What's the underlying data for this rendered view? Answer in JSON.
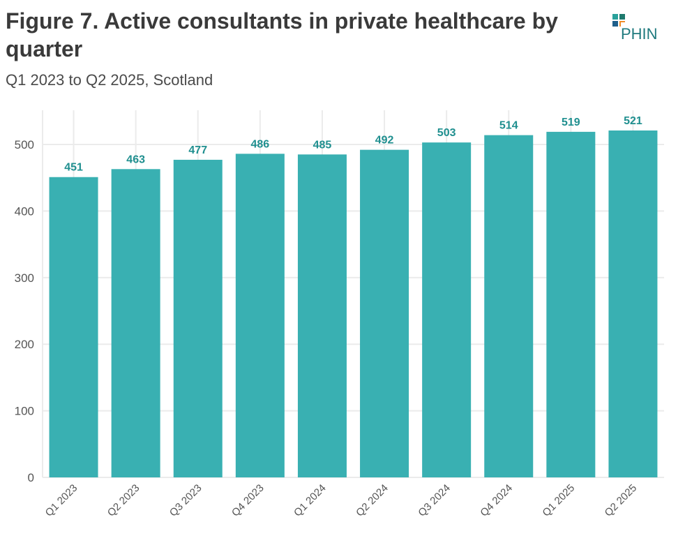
{
  "title": "Figure 7. Active consultants in private healthcare by quarter",
  "subtitle": "Q1 2023 to Q2 2025, Scotland",
  "logo": {
    "text": "PHIN",
    "colors": [
      "#2aa19b",
      "#1f7a6e",
      "#1f5f8b",
      "#f28c28"
    ]
  },
  "chart_data": {
    "type": "bar",
    "categories": [
      "Q1 2023",
      "Q2 2023",
      "Q3 2023",
      "Q4 2023",
      "Q1 2024",
      "Q2 2024",
      "Q3 2024",
      "Q4 2024",
      "Q1 2025",
      "Q2 2025"
    ],
    "values": [
      451,
      463,
      477,
      486,
      485,
      492,
      503,
      514,
      519,
      521
    ],
    "ylim": [
      0,
      550
    ],
    "yticks": [
      0,
      100,
      200,
      300,
      400,
      500
    ],
    "grid": true,
    "data_labels": true,
    "bar_color": "#35aeb0",
    "label_color": "#1f8f8f"
  }
}
